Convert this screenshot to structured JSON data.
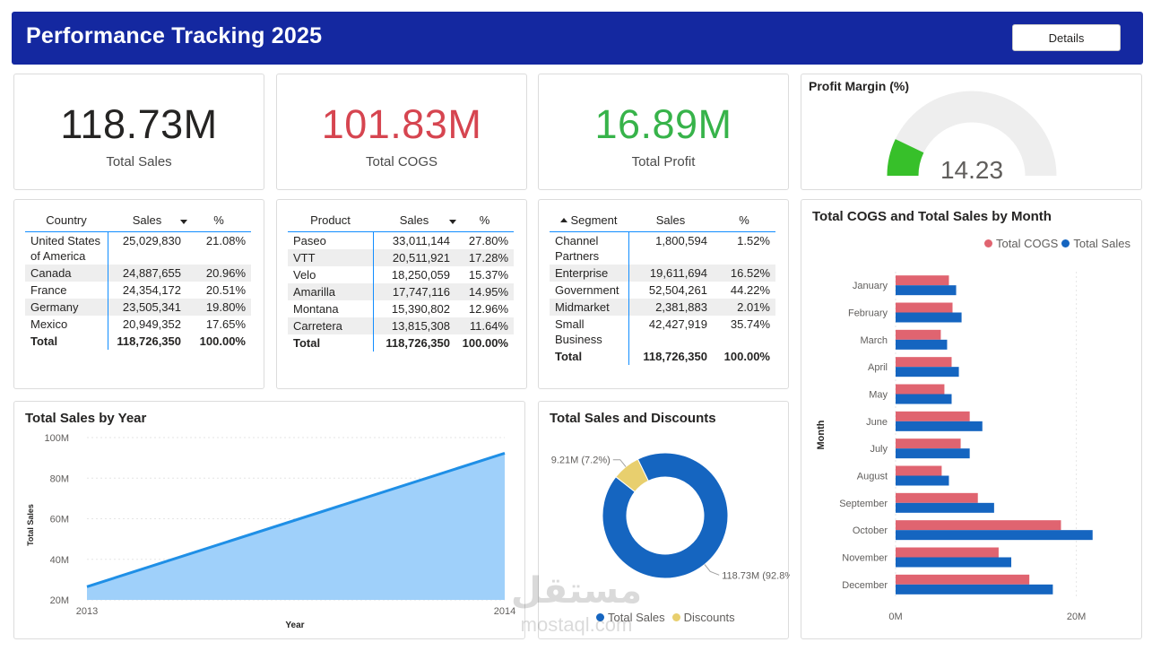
{
  "header": {
    "title": "Performance Tracking 2025",
    "details_label": "Details",
    "color": "#1428a0"
  },
  "kpis": {
    "sales": {
      "value": "118.73M",
      "label": "Total Sales",
      "color": "#252423"
    },
    "cogs": {
      "value": "101.83M",
      "label": "Total COGS",
      "color": "#d64550"
    },
    "profit": {
      "value": "16.89M",
      "label": "Total Profit",
      "color": "#37b34a"
    }
  },
  "profit_margin": {
    "title": "Profit Margin (%)",
    "value_label": "14.23",
    "value": 14.23,
    "max": 100,
    "fill_color": "#37c02a",
    "track_color": "#eeeeee"
  },
  "country_table": {
    "headers": [
      "Country",
      "Sales",
      "%"
    ],
    "rows": [
      [
        "United States of America",
        "25,029,830",
        "21.08%"
      ],
      [
        "Canada",
        "24,887,655",
        "20.96%"
      ],
      [
        "France",
        "24,354,172",
        "20.51%"
      ],
      [
        "Germany",
        "23,505,341",
        "19.80%"
      ],
      [
        "Mexico",
        "20,949,352",
        "17.65%"
      ]
    ],
    "total": [
      "Total",
      "118,726,350",
      "100.00%"
    ]
  },
  "product_table": {
    "headers": [
      "Product",
      "Sales",
      "%"
    ],
    "rows": [
      [
        "Paseo",
        "33,011,144",
        "27.80%"
      ],
      [
        "VTT",
        "20,511,921",
        "17.28%"
      ],
      [
        "Velo",
        "18,250,059",
        "15.37%"
      ],
      [
        "Amarilla",
        "17,747,116",
        "14.95%"
      ],
      [
        "Montana",
        "15,390,802",
        "12.96%"
      ],
      [
        "Carretera",
        "13,815,308",
        "11.64%"
      ]
    ],
    "total": [
      "Total",
      "118,726,350",
      "100.00%"
    ]
  },
  "segment_table": {
    "headers": [
      "Segment",
      "Sales",
      "%"
    ],
    "rows": [
      [
        "Channel Partners",
        "1,800,594",
        "1.52%"
      ],
      [
        "Enterprise",
        "19,611,694",
        "16.52%"
      ],
      [
        "Government",
        "52,504,261",
        "44.22%"
      ],
      [
        "Midmarket",
        "2,381,883",
        "2.01%"
      ],
      [
        "Small Business",
        "42,427,919",
        "35.74%"
      ]
    ],
    "total": [
      "Total",
      "118,726,350",
      "100.00%"
    ]
  },
  "watermark": {
    "arabic": "مستقل",
    "latin": "mostaql.com"
  },
  "chart_data": [
    {
      "type": "area",
      "title": "Total Sales by Year",
      "xlabel": "Year",
      "ylabel": "Total Sales",
      "x": [
        "2013",
        "2014"
      ],
      "series": [
        {
          "values": [
            26.5,
            92.3
          ]
        }
      ],
      "ylim": [
        20,
        100
      ],
      "yticks": [
        20,
        40,
        60,
        80,
        100
      ],
      "ytick_labels": [
        "20M",
        "40M",
        "60M",
        "80M",
        "100M"
      ],
      "line_color": "#1f8fe6",
      "fill_color": "#9fd0fa",
      "grid": true
    },
    {
      "type": "pie",
      "title": "Total Sales and Discounts",
      "donut": true,
      "slices": [
        {
          "name": "Total Sales",
          "value": 118.73,
          "label": "118.73M (92.8%)",
          "color": "#1565c0"
        },
        {
          "name": "Discounts",
          "value": 9.21,
          "label": "9.21M (7.2%)",
          "color": "#e8cf6e"
        }
      ],
      "legend_position": "bottom"
    },
    {
      "type": "bar",
      "orientation": "horizontal",
      "title": "Total COGS and Total Sales by Month",
      "ylabel": "Month",
      "categories": [
        "January",
        "February",
        "March",
        "April",
        "May",
        "June",
        "July",
        "August",
        "September",
        "October",
        "November",
        "December"
      ],
      "series": [
        {
          "name": "Total COGS",
          "color": "#e06470",
          "values": [
            5.9,
            6.3,
            5.0,
            6.2,
            5.4,
            8.2,
            7.2,
            5.1,
            9.1,
            18.3,
            11.4,
            14.8
          ]
        },
        {
          "name": "Total Sales",
          "color": "#1565c0",
          "values": [
            6.7,
            7.3,
            5.7,
            7.0,
            6.2,
            9.6,
            8.2,
            5.9,
            10.9,
            21.8,
            12.8,
            17.4
          ]
        }
      ],
      "xlim": [
        0,
        25
      ],
      "xticks": [
        0,
        20
      ],
      "xtick_labels": [
        "0M",
        "20M"
      ],
      "legend_position": "top-right",
      "grid": true
    }
  ]
}
